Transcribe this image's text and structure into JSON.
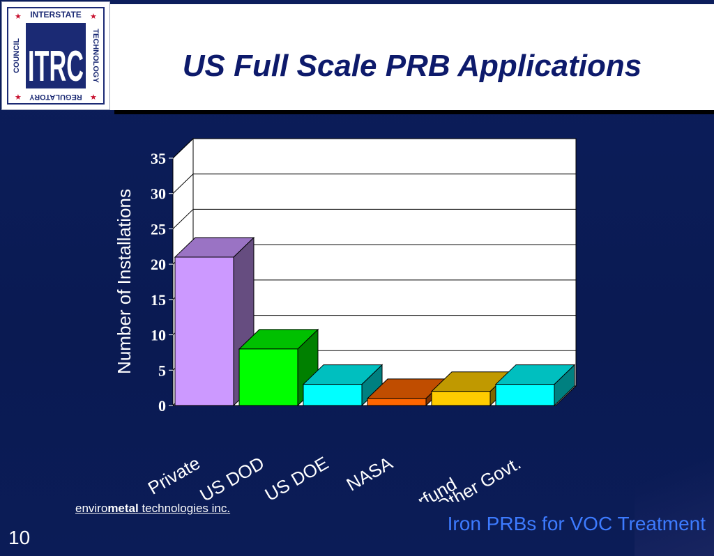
{
  "slide": {
    "title": "US Full Scale PRB Applications",
    "logo": {
      "top": "INTERSTATE",
      "left": "COUNCIL",
      "right": "TECHNOLOGY",
      "bottom": "REGULATORY",
      "center": "ITRC"
    },
    "footer_left_prefix": "enviro",
    "footer_left_bold": "metal",
    "footer_left_suffix": " technologies inc.",
    "footer_right": "Iron PRBs for VOC Treatment",
    "page_number": "10"
  },
  "chart_data": {
    "type": "bar",
    "title": "",
    "xlabel": "",
    "ylabel": "Number of Installations",
    "ylim": [
      0,
      35
    ],
    "yticks": [
      0,
      5,
      10,
      15,
      20,
      25,
      30,
      35
    ],
    "categories": [
      "Private",
      "US DOD",
      "US DOE",
      "NASA",
      "Superfund",
      "Other Govt."
    ],
    "values": [
      21,
      8,
      3,
      1,
      2,
      3
    ],
    "colors": {
      "front": [
        "#cc99ff",
        "#00ff00",
        "#00ffff",
        "#ff6600",
        "#ffcc00",
        "#00ffff"
      ],
      "top": [
        "#9a73c4",
        "#00c000",
        "#00bfbf",
        "#c04d00",
        "#c09900",
        "#00bfbf"
      ],
      "side": [
        "#664d80",
        "#008000",
        "#008080",
        "#803300",
        "#806600",
        "#008080"
      ]
    },
    "grid": true,
    "legend": "none"
  }
}
